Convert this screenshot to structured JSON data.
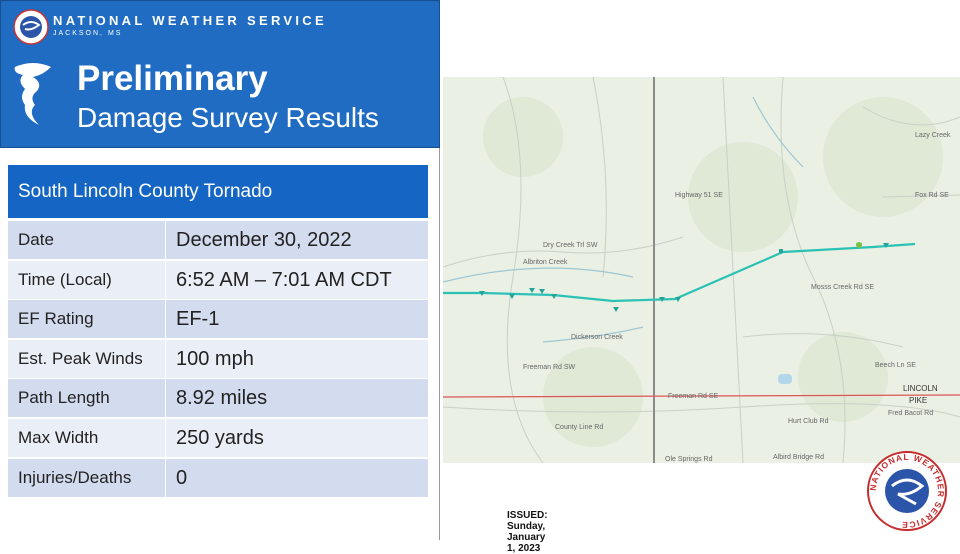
{
  "header": {
    "org": "NATIONAL WEATHER SERVICE",
    "office": "JACKSON, MS",
    "title": "Preliminary",
    "subtitle": "Damage Survey Results"
  },
  "table": {
    "title": "South Lincoln County Tornado",
    "rows": [
      [
        "Date",
        "December 30, 2022"
      ],
      [
        "Time (Local)",
        "6:52 AM – 7:01 AM CDT"
      ],
      [
        "EF Rating",
        "EF-1"
      ],
      [
        "Est. Peak Winds",
        "100 mph"
      ],
      [
        "Path Length",
        "8.92 miles"
      ],
      [
        "Max Width",
        "250 yards"
      ],
      [
        "Injuries/Deaths",
        "0"
      ]
    ]
  },
  "map": {
    "labels": [
      "Albriton Creek",
      "Dickerson Creek",
      "Dry Creek Trl SW",
      "Freeman Rd SW",
      "Freeman Rd SE",
      "County Line Rd",
      "Mosss Creek Rd SE",
      "Fox Rd SE",
      "Lazy Creek",
      "Beech Ln SE",
      "Hurt Club Rd",
      "Albird Bridge Rd",
      "Ole Springs Rd",
      "Highway 51 SE",
      "LINCOLN",
      "PIKE",
      "Fred Bacot Rd"
    ]
  },
  "issued": "ISSUED: Sunday, January 1, 2023"
}
